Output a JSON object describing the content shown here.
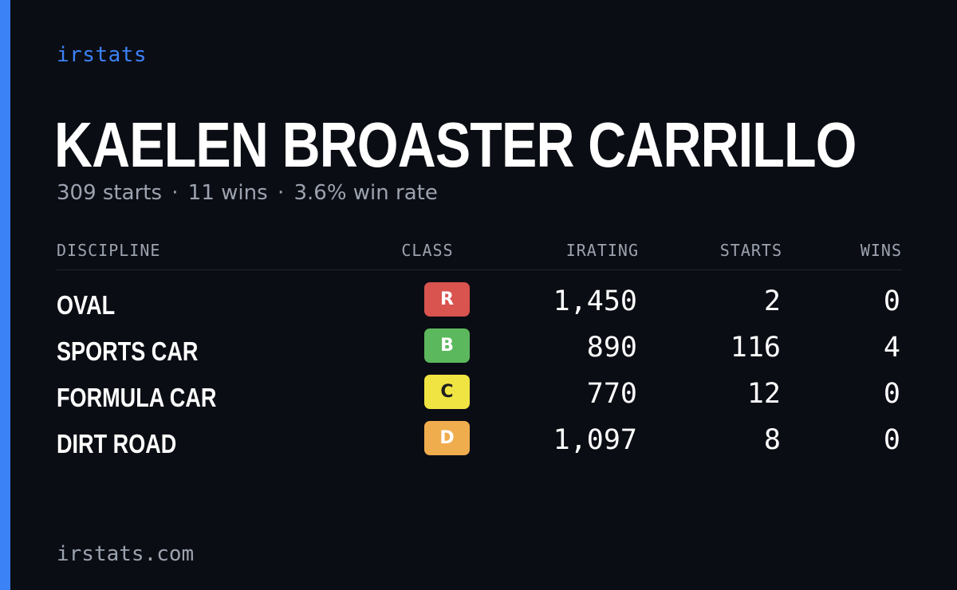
{
  "brand": "irstats",
  "driver": {
    "name": "KAELEN BROASTER CARRILLO",
    "starts": "309 starts",
    "wins": "11 wins",
    "win_rate": "3.6% win rate",
    "separator": "·"
  },
  "table": {
    "headers": {
      "discipline": "DISCIPLINE",
      "class": "CLASS",
      "irating": "IRATING",
      "starts": "STARTS",
      "wins": "WINS"
    },
    "rows": [
      {
        "discipline": "OVAL",
        "class": "R",
        "class_color": "#d9534f",
        "class_text_color": "#ffffff",
        "irating": "1,450",
        "starts": "2",
        "wins": "0"
      },
      {
        "discipline": "SPORTS CAR",
        "class": "B",
        "class_color": "#5cb85c",
        "class_text_color": "#ffffff",
        "irating": "890",
        "starts": "116",
        "wins": "4"
      },
      {
        "discipline": "FORMULA CAR",
        "class": "C",
        "class_color": "#f0e442",
        "class_text_color": "#1f1f1f",
        "irating": "770",
        "starts": "12",
        "wins": "0"
      },
      {
        "discipline": "DIRT ROAD",
        "class": "D",
        "class_color": "#f0ad4e",
        "class_text_color": "#ffffff",
        "irating": "1,097",
        "starts": "8",
        "wins": "0"
      }
    ]
  },
  "footer": "irstats.com",
  "colors": {
    "background": "#0b0d14",
    "accent": "#3b82f6",
    "muted_text": "#9ca3af",
    "primary_text": "#ffffff"
  }
}
